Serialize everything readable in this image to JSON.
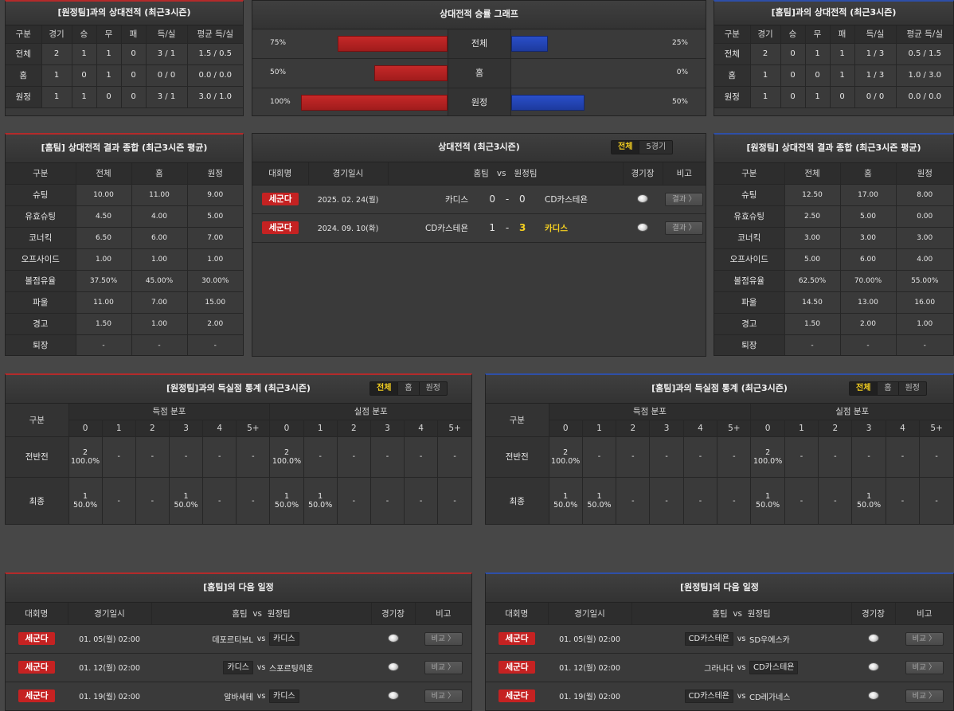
{
  "away_h2h": {
    "title": "[원정팀]과의 상대전적 (최근3시즌)",
    "headers": [
      "구분",
      "경기",
      "승",
      "무",
      "패",
      "득/실",
      "평균 득/실"
    ],
    "rows": [
      [
        "전체",
        "2",
        "1",
        "1",
        "0",
        "3 / 1",
        "1.5 / 0.5"
      ],
      [
        "홈",
        "1",
        "0",
        "1",
        "0",
        "0 / 0",
        "0.0 / 0.0"
      ],
      [
        "원정",
        "1",
        "1",
        "0",
        "0",
        "3 / 1",
        "3.0 / 1.0"
      ]
    ]
  },
  "graph": {
    "title": "상대전적 승률 그래프",
    "rows": [
      {
        "label": "전체",
        "left": "75%",
        "right": "25%",
        "left_value": 75,
        "right_value": 25
      },
      {
        "label": "홈",
        "left": "50%",
        "right": "0%",
        "left_value": 50,
        "right_value": 0
      },
      {
        "label": "원정",
        "left": "100%",
        "right": "50%",
        "left_value": 100,
        "right_value": 50
      }
    ],
    "colors": {
      "left": "#c62828",
      "right": "#2a4fc9"
    }
  },
  "home_h2h": {
    "title": "[홈팀]과의 상대전적 (최근3시즌)",
    "headers": [
      "구분",
      "경기",
      "승",
      "무",
      "패",
      "득/실",
      "평균 득/실"
    ],
    "rows": [
      [
        "전체",
        "2",
        "0",
        "1",
        "1",
        "1 / 3",
        "0.5 / 1.5"
      ],
      [
        "홈",
        "1",
        "0",
        "0",
        "1",
        "1 / 3",
        "1.0 / 3.0"
      ],
      [
        "원정",
        "1",
        "0",
        "1",
        "0",
        "0 / 0",
        "0.0 / 0.0"
      ]
    ]
  },
  "home_summary": {
    "title": "[홈팀] 상대전적 결과 종합 (최근3시즌 평균)",
    "headers": [
      "구분",
      "전체",
      "홈",
      "원정"
    ],
    "rows": [
      [
        "슈팅",
        "10.00",
        "11.00",
        "9.00"
      ],
      [
        "유효슈팅",
        "4.50",
        "4.00",
        "5.00"
      ],
      [
        "코너킥",
        "6.50",
        "6.00",
        "7.00"
      ],
      [
        "오프사이드",
        "1.00",
        "1.00",
        "1.00"
      ],
      [
        "볼점유율",
        "37.50%",
        "45.00%",
        "30.00%"
      ],
      [
        "파울",
        "11.00",
        "7.00",
        "15.00"
      ],
      [
        "경고",
        "1.50",
        "1.00",
        "2.00"
      ],
      [
        "퇴장",
        "-",
        "-",
        "-"
      ]
    ]
  },
  "away_summary": {
    "title": "[원정팀] 상대전적 결과 종합 (최근3시즌 평균)",
    "headers": [
      "구분",
      "전체",
      "홈",
      "원정"
    ],
    "rows": [
      [
        "슈팅",
        "12.50",
        "17.00",
        "8.00"
      ],
      [
        "유효슈팅",
        "2.50",
        "5.00",
        "0.00"
      ],
      [
        "코너킥",
        "3.00",
        "3.00",
        "3.00"
      ],
      [
        "오프사이드",
        "5.00",
        "6.00",
        "4.00"
      ],
      [
        "볼점유율",
        "62.50%",
        "70.00%",
        "55.00%"
      ],
      [
        "파울",
        "14.50",
        "13.00",
        "16.00"
      ],
      [
        "경고",
        "1.50",
        "2.00",
        "1.00"
      ],
      [
        "퇴장",
        "-",
        "-",
        "-"
      ]
    ]
  },
  "matches": {
    "title": "상대전적 (최근3시즌)",
    "tabs": [
      "전체",
      "5경기"
    ],
    "headers": {
      "league": "대회명",
      "date": "경기일시",
      "home": "홈팀",
      "vs": "vs",
      "away": "원정팀",
      "venue": "경기장",
      "note": "비고"
    },
    "rows": [
      {
        "league": "세군다",
        "date": "2025. 02. 24(월)",
        "home": "카디스",
        "hs": "0",
        "sep": "-",
        "as": "0",
        "away": "CD카스테욘",
        "btn": "결과 〉"
      },
      {
        "league": "세군다",
        "date": "2024. 09. 10(화)",
        "home": "CD카스테욘",
        "hs": "1",
        "sep": "-",
        "as": "3",
        "away": "카디스",
        "btn": "결과 〉"
      }
    ]
  },
  "gl_left": {
    "title": "[원정팀]과의 득실점 통계 (최근3시즌)",
    "tabs": [
      "전체",
      "홈",
      "원정"
    ],
    "col": "구분",
    "for": "득점 분포",
    "against": "실점 분포",
    "goals": [
      "0",
      "1",
      "2",
      "3",
      "4",
      "5+"
    ],
    "rows": [
      {
        "label": "전반전",
        "cells": [
          [
            "2",
            "100.0%"
          ],
          [
            "-",
            ""
          ],
          [
            "-",
            ""
          ],
          [
            "-",
            ""
          ],
          [
            "-",
            ""
          ],
          [
            "-",
            ""
          ],
          [
            "2",
            "100.0%"
          ],
          [
            "-",
            ""
          ],
          [
            "-",
            ""
          ],
          [
            "-",
            ""
          ],
          [
            "-",
            ""
          ],
          [
            "-",
            ""
          ]
        ]
      },
      {
        "label": "최종",
        "cells": [
          [
            "1",
            "50.0%"
          ],
          [
            "-",
            ""
          ],
          [
            "-",
            ""
          ],
          [
            "1",
            "50.0%"
          ],
          [
            "-",
            ""
          ],
          [
            "-",
            ""
          ],
          [
            "1",
            "50.0%"
          ],
          [
            "1",
            "50.0%"
          ],
          [
            "-",
            ""
          ],
          [
            "-",
            ""
          ],
          [
            "-",
            ""
          ],
          [
            "-",
            ""
          ]
        ]
      }
    ]
  },
  "gl_right": {
    "title": "[홈팀]과의 득실점 통계 (최근3시즌)",
    "tabs": [
      "전체",
      "홈",
      "원정"
    ],
    "col": "구분",
    "for": "득점 분포",
    "against": "실점 분포",
    "goals": [
      "0",
      "1",
      "2",
      "3",
      "4",
      "5+"
    ],
    "rows": [
      {
        "label": "전반전",
        "cells": [
          [
            "2",
            "100.0%"
          ],
          [
            "-",
            ""
          ],
          [
            "-",
            ""
          ],
          [
            "-",
            ""
          ],
          [
            "-",
            ""
          ],
          [
            "-",
            ""
          ],
          [
            "2",
            "100.0%"
          ],
          [
            "-",
            ""
          ],
          [
            "-",
            ""
          ],
          [
            "-",
            ""
          ],
          [
            "-",
            ""
          ],
          [
            "-",
            ""
          ]
        ]
      },
      {
        "label": "최종",
        "cells": [
          [
            "1",
            "50.0%"
          ],
          [
            "1",
            "50.0%"
          ],
          [
            "-",
            ""
          ],
          [
            "-",
            ""
          ],
          [
            "-",
            ""
          ],
          [
            "-",
            ""
          ],
          [
            "1",
            "50.0%"
          ],
          [
            "-",
            ""
          ],
          [
            "-",
            ""
          ],
          [
            "1",
            "50.0%"
          ],
          [
            "-",
            ""
          ],
          [
            "-",
            ""
          ]
        ]
      }
    ]
  },
  "home_next": {
    "title": "[홈팀]의 다음 일정",
    "headers": {
      "league": "대회명",
      "date": "경기일시",
      "home": "홈팀",
      "vs": "vs",
      "away": "원정팀",
      "venue": "경기장",
      "note": "비고"
    },
    "rows": [
      {
        "league": "세군다",
        "date": "01. 05(월) 02:00",
        "home": "데포르티보L",
        "vs": "vs",
        "away": "카디스",
        "hl": "away",
        "btn": "비교 〉"
      },
      {
        "league": "세군다",
        "date": "01. 12(월) 02:00",
        "home": "카디스",
        "vs": "vs",
        "away": "스포르팅히혼",
        "hl": "home",
        "btn": "비교 〉"
      },
      {
        "league": "세군다",
        "date": "01. 19(월) 02:00",
        "home": "알바세테",
        "vs": "vs",
        "away": "카디스",
        "hl": "away",
        "btn": "비교 〉"
      }
    ]
  },
  "away_next": {
    "title": "[원정팀]의 다음 일정",
    "headers": {
      "league": "대회명",
      "date": "경기일시",
      "home": "홈팀",
      "vs": "vs",
      "away": "원정팀",
      "venue": "경기장",
      "note": "비고"
    },
    "rows": [
      {
        "league": "세군다",
        "date": "01. 05(월) 02:00",
        "home": "CD카스테욘",
        "vs": "vs",
        "away": "SD우에스카",
        "hl": "home",
        "btn": "비교 〉"
      },
      {
        "league": "세군다",
        "date": "01. 12(월) 02:00",
        "home": "그라나다",
        "vs": "vs",
        "away": "CD카스테욘",
        "hl": "away",
        "btn": "비교 〉"
      },
      {
        "league": "세군다",
        "date": "01. 19(월) 02:00",
        "home": "CD카스테욘",
        "vs": "vs",
        "away": "CD레가네스",
        "hl": "home",
        "btn": "비교 〉"
      }
    ]
  }
}
